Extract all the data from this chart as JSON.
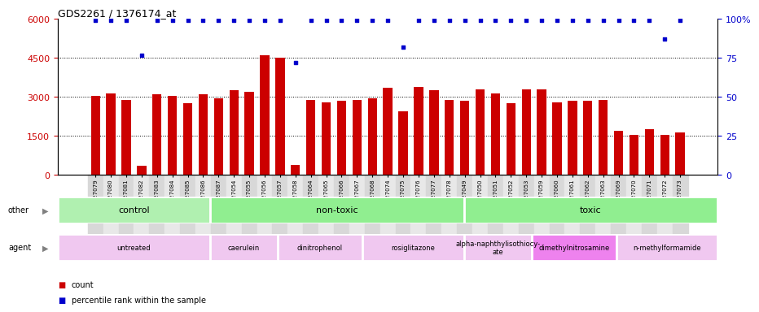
{
  "title": "GDS2261 / 1376174_at",
  "samples": [
    "GSM127079",
    "GSM127080",
    "GSM127081",
    "GSM127082",
    "GSM127083",
    "GSM127084",
    "GSM127085",
    "GSM127086",
    "GSM127087",
    "GSM127054",
    "GSM127055",
    "GSM127056",
    "GSM127057",
    "GSM127058",
    "GSM127064",
    "GSM127065",
    "GSM127066",
    "GSM127067",
    "GSM127068",
    "GSM127074",
    "GSM127075",
    "GSM127076",
    "GSM127077",
    "GSM127078",
    "GSM127049",
    "GSM127050",
    "GSM127051",
    "GSM127052",
    "GSM127053",
    "GSM127059",
    "GSM127060",
    "GSM127061",
    "GSM127062",
    "GSM127063",
    "GSM127069",
    "GSM127070",
    "GSM127071",
    "GSM127072",
    "GSM127073"
  ],
  "counts": [
    3050,
    3150,
    2900,
    350,
    3100,
    3050,
    2750,
    3100,
    2950,
    3250,
    3200,
    4600,
    4500,
    400,
    2900,
    2800,
    2850,
    2900,
    2950,
    3350,
    2450,
    3400,
    3250,
    2900,
    2850,
    3300,
    3150,
    2750,
    3300,
    3300,
    2800,
    2850,
    2850,
    2900,
    1700,
    1550,
    1750,
    1550,
    1650
  ],
  "percentiles": [
    99,
    99,
    99,
    77,
    99,
    99,
    99,
    99,
    99,
    99,
    99,
    99,
    99,
    72,
    99,
    99,
    99,
    99,
    99,
    99,
    82,
    99,
    99,
    99,
    99,
    99,
    99,
    99,
    99,
    99,
    99,
    99,
    99,
    99,
    99,
    99,
    99,
    87,
    99
  ],
  "ylim_left": [
    0,
    6000
  ],
  "ylim_right": [
    0,
    100
  ],
  "yticks_left": [
    0,
    1500,
    3000,
    4500,
    6000
  ],
  "yticks_right": [
    0,
    25,
    50,
    75,
    100
  ],
  "bar_color": "#cc0000",
  "dot_color": "#0000cc",
  "other_groups": [
    {
      "label": "control",
      "start": 0,
      "end": 9,
      "color": "#b0f0b0"
    },
    {
      "label": "non-toxic",
      "start": 9,
      "end": 24,
      "color": "#90ee90"
    },
    {
      "label": "toxic",
      "start": 24,
      "end": 39,
      "color": "#90ee90"
    }
  ],
  "agent_groups": [
    {
      "label": "untreated",
      "start": 0,
      "end": 9,
      "color": "#f0c8f0"
    },
    {
      "label": "caerulein",
      "start": 9,
      "end": 13,
      "color": "#f0c8f0"
    },
    {
      "label": "dinitrophenol",
      "start": 13,
      "end": 18,
      "color": "#f0c8f0"
    },
    {
      "label": "rosiglitazone",
      "start": 18,
      "end": 24,
      "color": "#f0c8f0"
    },
    {
      "label": "alpha-naphthylisothiocy-\nate",
      "start": 24,
      "end": 28,
      "color": "#f0c8f0"
    },
    {
      "label": "dimethylnitrosamine",
      "start": 28,
      "end": 33,
      "color": "#ee82ee"
    },
    {
      "label": "n-methylformamide",
      "start": 33,
      "end": 39,
      "color": "#f0c8f0"
    }
  ],
  "bg_color": "#e8e8e8"
}
